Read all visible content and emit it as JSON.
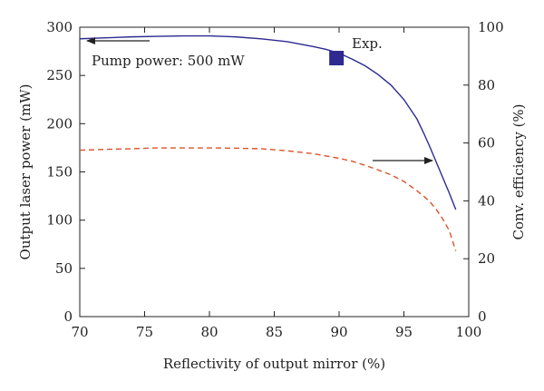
{
  "chart_data": {
    "type": "line",
    "xlabel": "Reflectivity of output mirror (%)",
    "ylabel": "Output laser power (mW)",
    "y2label": "Conv. efficiency (%)",
    "xlim": [
      70,
      100
    ],
    "ylim": [
      0,
      300
    ],
    "y2lim": [
      0,
      100
    ],
    "x_ticks": [
      70,
      75,
      80,
      85,
      90,
      95,
      100
    ],
    "y_ticks": [
      0,
      50,
      100,
      150,
      200,
      250,
      300
    ],
    "y2_ticks": [
      0,
      20,
      40,
      60,
      80,
      100
    ],
    "grid": false,
    "series": [
      {
        "axis": "left",
        "color": "#2b2b8f",
        "style": "solid",
        "x": [
          70,
          72,
          74,
          76,
          78,
          80,
          82,
          84,
          86,
          88,
          89,
          90,
          91,
          92,
          93,
          94,
          95,
          96,
          96.5,
          97,
          97.5,
          98,
          98.5,
          99
        ],
        "values": [
          288,
          289,
          290,
          290.5,
          291,
          291,
          290,
          288,
          285,
          280,
          277,
          273,
          267,
          260,
          251,
          240,
          225,
          205,
          191,
          176,
          160,
          144,
          128,
          111
        ]
      },
      {
        "axis": "right",
        "color": "#d9542a",
        "style": "dashed",
        "x": [
          70,
          72,
          74,
          76,
          78,
          80,
          82,
          84,
          86,
          88,
          90,
          91,
          92,
          93,
          94,
          95,
          96,
          96.5,
          97,
          97.5,
          98,
          98.5,
          99
        ],
        "values": [
          57.5,
          57.8,
          58,
          58.3,
          58.3,
          58.3,
          58.2,
          58,
          57.3,
          56.3,
          54.7,
          53.7,
          52.3,
          50.7,
          49,
          46.7,
          43.5,
          41.7,
          39.7,
          37,
          33.7,
          29.7,
          22.7
        ]
      }
    ],
    "experimental_point": {
      "x": 89.8,
      "y": 268,
      "color": "#2e2a8f"
    },
    "annotations": {
      "pump_power": "Pump power: 500 mW",
      "exp": "Exp."
    }
  }
}
